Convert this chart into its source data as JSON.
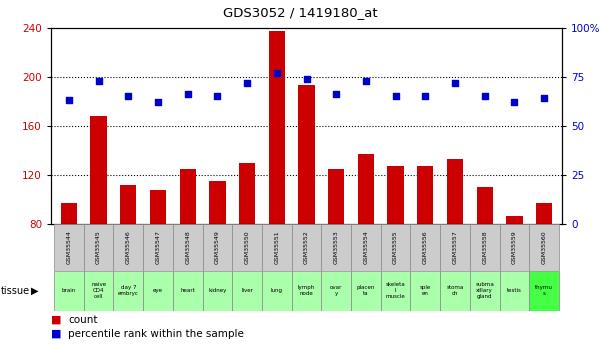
{
  "title": "GDS3052 / 1419180_at",
  "gsm_labels": [
    "GSM35544",
    "GSM35545",
    "GSM35546",
    "GSM35547",
    "GSM35548",
    "GSM35549",
    "GSM35550",
    "GSM35551",
    "GSM35552",
    "GSM35553",
    "GSM35554",
    "GSM35555",
    "GSM35556",
    "GSM35557",
    "GSM35558",
    "GSM35559",
    "GSM35560"
  ],
  "tissue_labels": [
    "brain",
    "naive\nCD4\ncell",
    "day 7\nembryc",
    "eye",
    "heart",
    "kidney",
    "liver",
    "lung",
    "lymph\nnode",
    "ovar\ny",
    "placen\nta",
    "skeleta\nl\nmuscle",
    "sple\nen",
    "stoma\nch",
    "subma\nxillary\ngland",
    "testis",
    "thymu\ns"
  ],
  "tissue_colors": [
    "#aaffaa",
    "#aaffaa",
    "#aaffaa",
    "#aaffaa",
    "#aaffaa",
    "#aaffaa",
    "#aaffaa",
    "#aaffaa",
    "#aaffaa",
    "#aaffaa",
    "#aaffaa",
    "#aaffaa",
    "#aaffaa",
    "#aaffaa",
    "#aaffaa",
    "#aaffaa",
    "#44ff44"
  ],
  "count_values": [
    97,
    168,
    112,
    108,
    125,
    115,
    130,
    237,
    193,
    125,
    137,
    127,
    127,
    133,
    110,
    87,
    97
  ],
  "percentile_values": [
    63,
    73,
    65,
    62,
    66,
    65,
    72,
    77,
    74,
    66,
    73,
    65,
    65,
    72,
    65,
    62,
    64
  ],
  "bar_color": "#cc0000",
  "dot_color": "#0000cc",
  "bar_baseline": 80,
  "ylim_left": [
    80,
    240
  ],
  "ylim_right": [
    0,
    100
  ],
  "yticks_left": [
    80,
    120,
    160,
    200,
    240
  ],
  "yticks_right": [
    0,
    25,
    50,
    75,
    100
  ],
  "gsm_bg": "#cccccc",
  "grid_yticks": [
    120,
    160,
    200
  ]
}
